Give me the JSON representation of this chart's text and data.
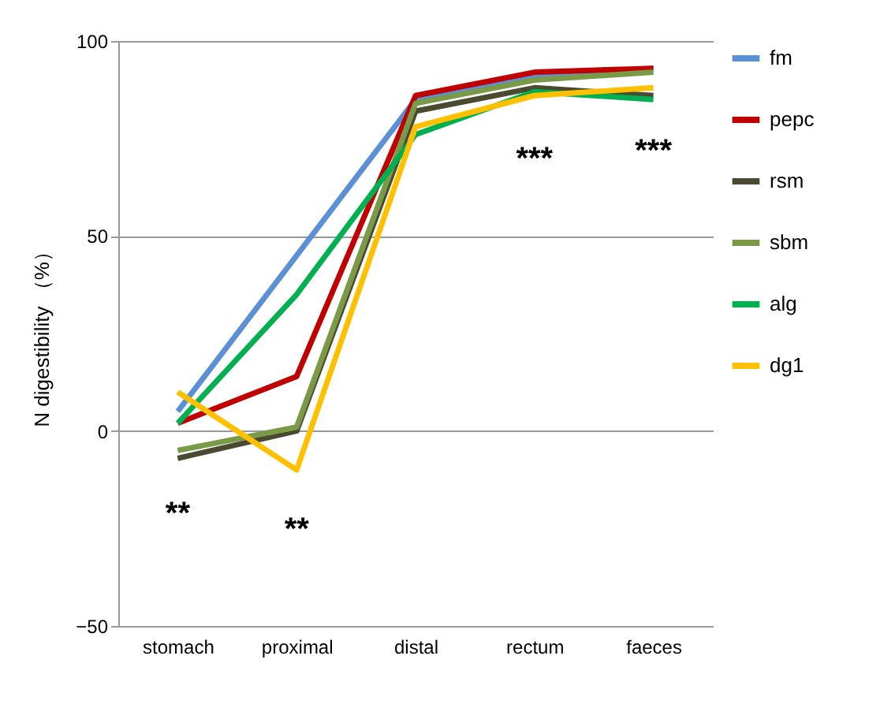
{
  "chart_data": {
    "type": "line",
    "ylabel": "N digestibility （%）",
    "categories": [
      "stomach",
      "proximal",
      "distal",
      "rectum",
      "faeces"
    ],
    "ylim": [
      -50,
      100
    ],
    "yticks": [
      -50,
      0,
      50,
      100
    ],
    "grid": "y",
    "legend": "right",
    "line_style": "solid",
    "series": [
      {
        "name": "fm",
        "color": "#5b8fd6",
        "values": [
          5,
          45,
          85,
          91,
          93
        ]
      },
      {
        "name": "pepc",
        "color": "#c00000",
        "values": [
          2,
          14,
          86,
          92,
          93
        ]
      },
      {
        "name": "rsm",
        "color": "#4a4a30",
        "values": [
          -7,
          0,
          82,
          88,
          86
        ]
      },
      {
        "name": "sbm",
        "color": "#7a9a48",
        "values": [
          -5,
          1,
          84,
          90,
          92
        ]
      },
      {
        "name": "alg",
        "color": "#00b050",
        "values": [
          2,
          35,
          76,
          87,
          85
        ]
      },
      {
        "name": "dg1",
        "color": "#ffc000",
        "values": [
          10,
          -10,
          78,
          86,
          88
        ]
      }
    ],
    "annotations": [
      "**",
      "**",
      "***",
      "***"
    ]
  }
}
